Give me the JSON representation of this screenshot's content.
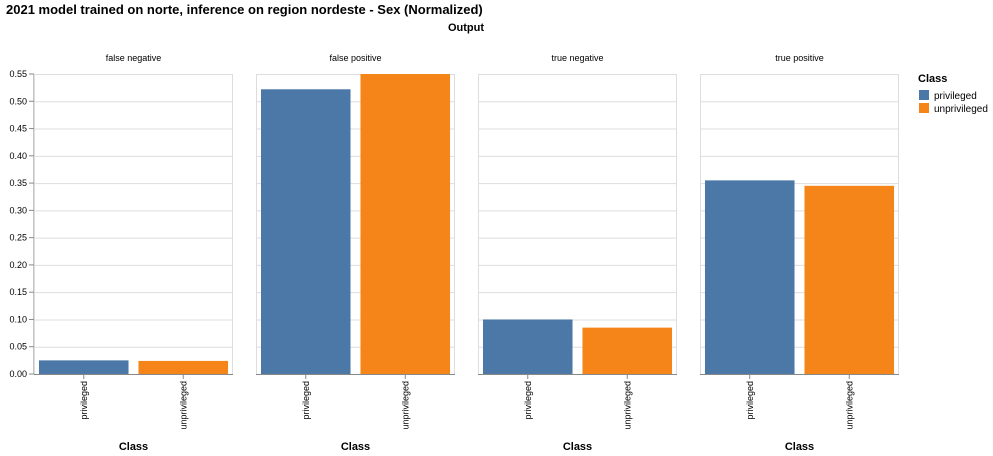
{
  "chart_data": {
    "type": "bar",
    "title": "2021 model trained on norte, inference on region nordeste - Sex (Normalized)",
    "column_title": "Output",
    "facets": [
      "false negative",
      "false positive",
      "true negative",
      "true positive"
    ],
    "categories": [
      "privileged",
      "unprivileged"
    ],
    "xlabel": "Class",
    "ylabel": "",
    "ylim": [
      0,
      0.55
    ],
    "yticks": [
      "0.00",
      "0.05",
      "0.10",
      "0.15",
      "0.20",
      "0.25",
      "0.30",
      "0.35",
      "0.40",
      "0.45",
      "0.50",
      "0.55"
    ],
    "grid": true,
    "values": [
      [
        0.025,
        0.024
      ],
      [
        0.522,
        0.55
      ],
      [
        0.1,
        0.085
      ],
      [
        0.355,
        0.345
      ]
    ],
    "legend": {
      "title": "Class",
      "placement": "right",
      "entries": [
        "privileged",
        "unprivileged"
      ]
    },
    "colors": {
      "privileged": "#4c78a8",
      "unprivileged": "#f58518"
    }
  }
}
